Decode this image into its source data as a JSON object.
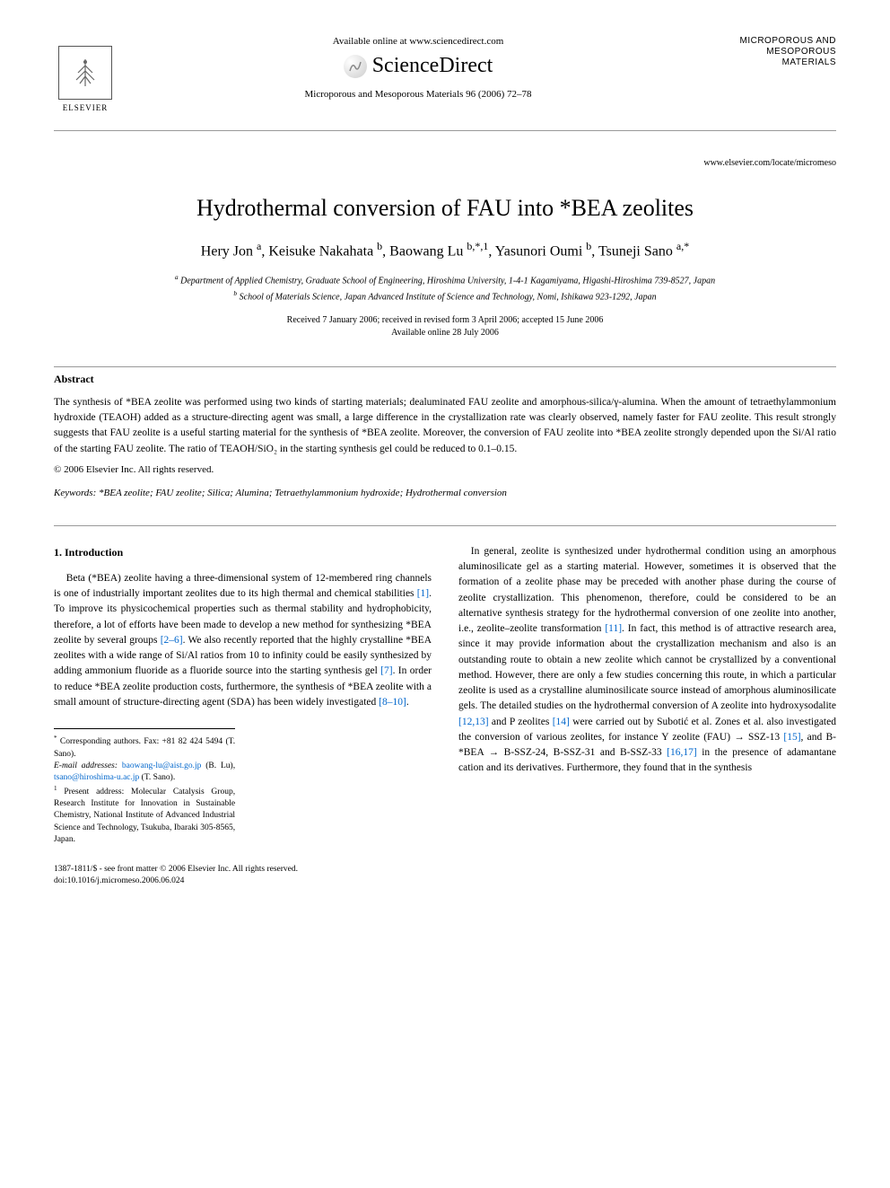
{
  "header": {
    "available_text": "Available online at www.sciencedirect.com",
    "sciencedirect": "ScienceDirect",
    "journal_ref": "Microporous and Mesoporous Materials 96 (2006) 72–78",
    "elsevier_label": "ELSEVIER",
    "journal_logo_line1": "MICROPOROUS AND",
    "journal_logo_line2": "MESOPOROUS MATERIALS",
    "locate_url": "www.elsevier.com/locate/micromeso"
  },
  "title": "Hydrothermal conversion of FAU into *BEA zeolites",
  "authors_html": "Hery Jon <sup>a</sup>, Keisuke Nakahata <sup>b</sup>, Baowang Lu <sup>b,*,1</sup>, Yasunori Oumi <sup>b</sup>, Tsuneji Sano <sup>a,*</sup>",
  "affiliations": {
    "a": "Department of Applied Chemistry, Graduate School of Engineering, Hiroshima University, 1-4-1 Kagamiyama, Higashi-Hiroshima 739-8527, Japan",
    "b": "School of Materials Science, Japan Advanced Institute of Science and Technology, Nomi, Ishikawa 923-1292, Japan"
  },
  "dates": {
    "received": "Received 7 January 2006; received in revised form 3 April 2006; accepted 15 June 2006",
    "online": "Available online 28 July 2006"
  },
  "abstract": {
    "heading": "Abstract",
    "text": "The synthesis of *BEA zeolite was performed using two kinds of starting materials; dealuminated FAU zeolite and amorphous-silica/γ-alumina. When the amount of tetraethylammonium hydroxide (TEAOH) added as a structure-directing agent was small, a large difference in the crystallization rate was clearly observed, namely faster for FAU zeolite. This result strongly suggests that FAU zeolite is a useful starting material for the synthesis of *BEA zeolite. Moreover, the conversion of FAU zeolite into *BEA zeolite strongly depended upon the Si/Al ratio of the starting FAU zeolite. The ratio of TEAOH/SiO₂ in the starting synthesis gel could be reduced to 0.1–0.15.",
    "copyright": "© 2006 Elsevier Inc. All rights reserved."
  },
  "keywords": {
    "label": "Keywords:",
    "text": "*BEA zeolite; FAU zeolite; Silica; Alumina; Tetraethylammonium hydroxide; Hydrothermal conversion"
  },
  "section1": {
    "heading": "1. Introduction",
    "para1_pre": "Beta (*BEA) zeolite having a three-dimensional system of 12-membered ring channels is one of industrially important zeolites due to its high thermal and chemical stabilities ",
    "ref1": "[1]",
    "para1_mid1": ". To improve its physicochemical properties such as thermal stability and hydrophobicity, therefore, a lot of efforts have been made to develop a new method for synthesizing *BEA zeolite by several groups ",
    "ref2": "[2–6]",
    "para1_mid2": ". We also recently reported that the highly crystalline *BEA zeolites with a wide range of Si/Al ratios from 10 to infinity could be easily synthesized by adding ammonium fluoride as a fluoride source into the starting synthesis gel ",
    "ref3": "[7]",
    "para1_mid3": ". In order to reduce *BEA zeolite production costs, furthermore, the synthesis of *BEA zeolite with a small amount of structure-directing agent (SDA) has been widely investigated ",
    "ref4": "[8–10]",
    "para1_end": ".",
    "para2_pre": "In general, zeolite is synthesized under hydrothermal condition using an amorphous aluminosilicate gel as a starting material. However, sometimes it is observed that the formation of a zeolite phase may be preceded with another phase during the course of zeolite crystallization. This phenomenon, therefore, could be considered to be an alternative synthesis strategy for the hydrothermal conversion of one zeolite into another, i.e., zeolite–zeolite transformation ",
    "ref5": "[11]",
    "para2_mid1": ". In fact, this method is of attractive research area, since it may provide information about the crystallization mechanism and also is an outstanding route to obtain a new zeolite which cannot be crystallized by a conventional method. However, there are only a few studies concerning this route, in which a particular zeolite is used as a crystalline aluminosilicate source instead of amorphous aluminosilicate gels. The detailed studies on the hydrothermal conversion of A zeolite into hydroxysodalite ",
    "ref6": "[12,13]",
    "para2_mid2": " and P zeolites ",
    "ref7": "[14]",
    "para2_mid3": " were carried out by Subotić et al. Zones et al. also investigated the conversion of various zeolites, for instance Y zeolite (FAU) → SSZ-13 ",
    "ref8": "[15]",
    "para2_mid4": ", and B-*BEA → B-SSZ-24, B-SSZ-31 and B-SSZ-33 ",
    "ref9": "[16,17]",
    "para2_end": " in the presence of adamantane cation and its derivatives. Furthermore, they found that in the synthesis"
  },
  "footnotes": {
    "corresponding": "Corresponding authors. Fax: +81 82 424 5494 (T. Sano).",
    "email_label": "E-mail addresses:",
    "email1": "baowang-lu@aist.go.jp",
    "email1_paren": "(B. Lu),",
    "email2": "tsano@hiroshima-u.ac.jp",
    "email2_paren": "(T. Sano).",
    "present": "Present address: Molecular Catalysis Group, Research Institute for Innovation in Sustainable Chemistry, National Institute of Advanced Industrial Science and Technology, Tsukuba, Ibaraki 305-8565, Japan."
  },
  "footer": {
    "issn": "1387-1811/$ - see front matter © 2006 Elsevier Inc. All rights reserved.",
    "doi": "doi:10.1016/j.micromeso.2006.06.024"
  },
  "colors": {
    "link": "#0066cc",
    "text": "#000000",
    "background": "#ffffff",
    "rule": "#999999"
  },
  "typography": {
    "title_size_pt": 26,
    "author_size_pt": 16,
    "body_size_pt": 11.5,
    "footnote_size_pt": 9.5,
    "font_family": "Georgia, Times New Roman, serif"
  }
}
